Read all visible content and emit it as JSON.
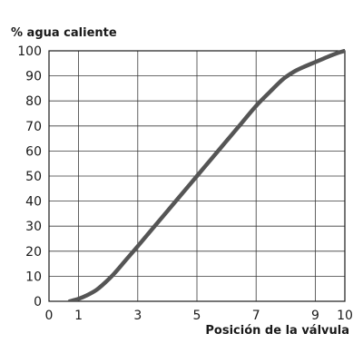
{
  "chart_data": {
    "type": "line",
    "ylabel": "% agua caliente",
    "xlabel": "Posición de la válvula",
    "xlim": [
      0,
      10
    ],
    "ylim": [
      0,
      100
    ],
    "x_ticks": [
      0,
      1,
      3,
      5,
      7,
      9,
      10
    ],
    "x_tick_labels": [
      "0",
      "1",
      "3",
      "5",
      "7",
      "9",
      "10"
    ],
    "y_ticks": [
      0,
      10,
      20,
      30,
      40,
      50,
      60,
      70,
      80,
      90,
      100
    ],
    "y_tick_labels": [
      "0",
      "10",
      "20",
      "30",
      "40",
      "50",
      "60",
      "70",
      "80",
      "90",
      "100"
    ],
    "grid": true,
    "series": [
      {
        "color": "#555555",
        "x": [
          0.7,
          1.0,
          1.3,
          1.6,
          1.9,
          2.2,
          2.6,
          3.0,
          3.5,
          4.0,
          4.5,
          5.0,
          5.5,
          6.0,
          6.5,
          7.0,
          7.5,
          7.8,
          8.0,
          8.3,
          8.6,
          9.0,
          9.4,
          9.8,
          10.0
        ],
        "y": [
          0,
          1,
          2.5,
          4.5,
          7.5,
          11,
          16.5,
          22,
          29,
          36,
          43,
          50,
          57,
          64,
          71,
          78,
          84,
          87.5,
          89.5,
          91.8,
          93.5,
          95.5,
          97.5,
          99.3,
          100
        ]
      }
    ]
  }
}
